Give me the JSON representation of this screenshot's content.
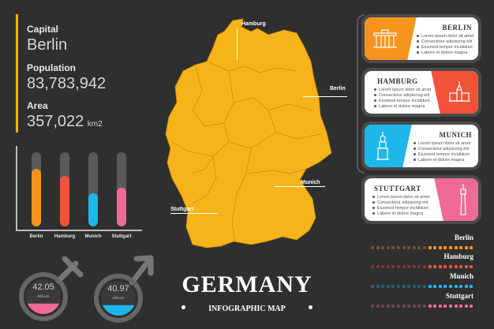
{
  "stats": {
    "capital_label": "Capital",
    "capital_value": "Berlin",
    "population_label": "Population",
    "population_value": "83,783,942",
    "area_label": "Area",
    "area_value": "357,022",
    "area_unit": "km2"
  },
  "bars": [
    {
      "city": "Berlin",
      "color": "#f7941d",
      "level": 0.78
    },
    {
      "city": "Hamburg",
      "color": "#f2523a",
      "level": 0.68
    },
    {
      "city": "Munich",
      "color": "#1fb6ea",
      "level": 0.45
    },
    {
      "city": "Stuttgart",
      "color": "#f06a96",
      "level": 0.52
    }
  ],
  "map_labels": {
    "hamburg": "Hamburg",
    "berlin": "Berlin",
    "munich": "Munich",
    "stuttgart": "Stuttgart"
  },
  "cards": [
    {
      "title": "BERLIN",
      "accent": "#f7941d",
      "icon": "brandenburg-gate-icon",
      "lines": [
        "Lorem ipsum dolor sit amet",
        "Consectetur adipiscing elit",
        "Eiusmod tempor incididunt",
        "Labore et dolore magna"
      ]
    },
    {
      "title": "HAMBURG",
      "accent": "#f2523a",
      "icon": "hamburg-townhall-icon",
      "lines": [
        "Lorem ipsum dolor sit amet",
        "Consectetur adipiscing elit",
        "Eiusmod tempor incididunt",
        "Labore et dolore magna"
      ]
    },
    {
      "title": "MUNICH",
      "accent": "#1fb6ea",
      "icon": "munich-tower-icon",
      "lines": [
        "Lorem ipsum dolor sit amet",
        "Consectetur adipiscing elit",
        "Eiusmod tempor incididunt",
        "Labore et dolore magna"
      ]
    },
    {
      "title": "STUTTGART",
      "accent": "#f06a96",
      "icon": "tv-tower-icon",
      "lines": [
        "Lorem ipsum dolor sit amet",
        "Consectetur adipiscing elit",
        "Eiusmod tempor incididunt",
        "Labore et dolore magna"
      ]
    }
  ],
  "legend": [
    {
      "city": "Berlin",
      "color": "#f7941d"
    },
    {
      "city": "Hamburg",
      "color": "#f2523a"
    },
    {
      "city": "Munich",
      "color": "#1fb6ea"
    },
    {
      "city": "Stuttgart",
      "color": "#f06a96"
    }
  ],
  "gauges": [
    {
      "value": "42.05",
      "sub": "Millions",
      "icon": "female-symbol-icon",
      "color": "#f06a96",
      "level": 0.3
    },
    {
      "value": "40.97",
      "sub": "Millions",
      "icon": "male-symbol-icon",
      "color": "#1fb6ea",
      "level": 0.3
    }
  ],
  "title": {
    "main": "GERMANY",
    "sub": "INFOGRAPHIC MAP"
  }
}
